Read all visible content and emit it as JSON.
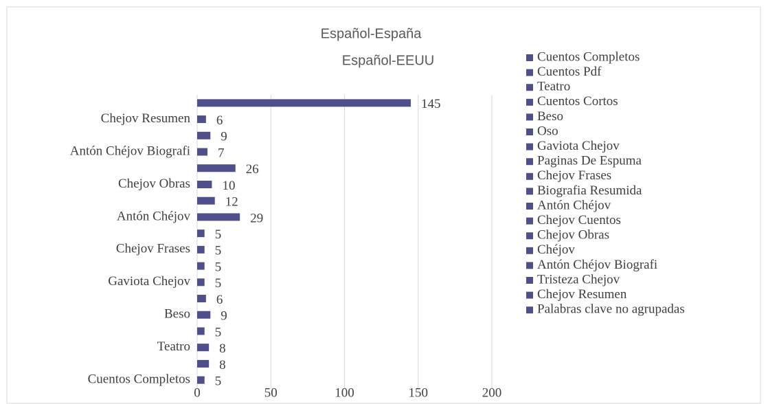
{
  "chart_data": {
    "type": "barh",
    "title": [
      "Español-España",
      "Español-EEUU"
    ],
    "categories": [
      "Cuentos Completos",
      "Cuentos Pdf",
      "Teatro",
      "Cuentos Cortos",
      "Beso",
      "Oso",
      "Gaviota Chejov",
      "Paginas De Espuma",
      "Chejov Frases",
      "Biografia Resumida",
      "Antón Chéjov",
      "Chejov Cuentos",
      "Chejov Obras",
      "Chéjov",
      "Antón Chéjov Biografi",
      "Tristeza Chejov",
      "Chejov Resumen",
      "Palabras clave no agrupadas"
    ],
    "values": [
      5,
      8,
      8,
      5,
      9,
      6,
      5,
      5,
      5,
      5,
      29,
      12,
      10,
      26,
      7,
      9,
      6,
      145
    ],
    "color": "#4f4f8c",
    "xlim": [
      0,
      200
    ],
    "xticks": [
      0,
      50,
      100,
      150,
      200
    ],
    "grid": true,
    "legend": "right"
  }
}
